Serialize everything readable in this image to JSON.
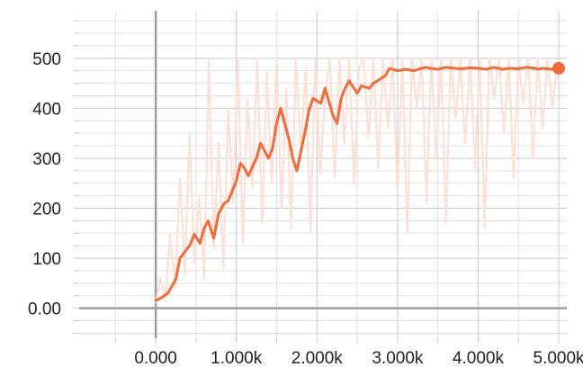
{
  "colors": {
    "smoothed": "#f26b3a",
    "raw": "#fde0d6",
    "grid_major": "#c8c8c8",
    "grid_minor": "#e2e2e2",
    "axis": "#9e9e9e",
    "tick_text": "#222222"
  },
  "chart_data": {
    "type": "line",
    "xlim": [
      -950,
      5100
    ],
    "ylim": [
      -60,
      595
    ],
    "grid": true,
    "x_ticks": [
      0,
      1000,
      2000,
      3000,
      4000,
      5000
    ],
    "x_tick_labels": [
      "0.000",
      "1.000k",
      "2.000k",
      "3.000k",
      "4.000k",
      "5.000k"
    ],
    "y_ticks": [
      0,
      100,
      200,
      300,
      400,
      500
    ],
    "y_tick_labels": [
      "0.00",
      "100",
      "200",
      "300",
      "400",
      "500"
    ],
    "series": [
      {
        "role": "smoothed",
        "x": [
          0,
          80,
          150,
          250,
          300,
          420,
          480,
          550,
          600,
          650,
          720,
          780,
          850,
          900,
          1000,
          1050,
          1100,
          1150,
          1250,
          1300,
          1400,
          1450,
          1500,
          1550,
          1650,
          1700,
          1750,
          1850,
          1900,
          1950,
          2050,
          2100,
          2200,
          2250,
          2300,
          2350,
          2400,
          2500,
          2550,
          2650,
          2700,
          2800,
          2850,
          2900,
          3000,
          3100,
          3200,
          3300,
          3350,
          3400,
          3500,
          3600,
          3700,
          3800,
          3900,
          4000,
          4100,
          4200,
          4300,
          4400,
          4500,
          4600,
          4700,
          4750,
          4800,
          4900,
          5000
        ],
        "y": [
          15,
          22,
          30,
          58,
          100,
          125,
          148,
          130,
          160,
          175,
          140,
          190,
          210,
          215,
          255,
          290,
          280,
          265,
          300,
          330,
          300,
          320,
          370,
          400,
          340,
          300,
          275,
          350,
          395,
          420,
          410,
          440,
          385,
          370,
          420,
          440,
          455,
          430,
          445,
          440,
          450,
          460,
          465,
          480,
          475,
          478,
          475,
          480,
          482,
          480,
          478,
          482,
          480,
          479,
          481,
          480,
          478,
          482,
          478,
          480,
          479,
          482,
          480,
          478,
          480,
          478,
          480
        ]
      },
      {
        "role": "raw",
        "x": [
          0,
          60,
          120,
          180,
          240,
          300,
          360,
          420,
          480,
          540,
          600,
          660,
          720,
          780,
          840,
          900,
          960,
          1020,
          1080,
          1140,
          1200,
          1260,
          1320,
          1380,
          1440,
          1500,
          1560,
          1620,
          1680,
          1740,
          1800,
          1860,
          1920,
          1980,
          2040,
          2100,
          2160,
          2220,
          2280,
          2340,
          2400,
          2460,
          2520,
          2580,
          2640,
          2700,
          2760,
          2820,
          2880,
          2940,
          3000,
          3060,
          3120,
          3180,
          3240,
          3300,
          3360,
          3420,
          3480,
          3540,
          3600,
          3660,
          3720,
          3780,
          3840,
          3900,
          3960,
          4020,
          4080,
          4140,
          4200,
          4260,
          4320,
          4380,
          4440,
          4500,
          4560,
          4620,
          4680,
          4740,
          4800,
          4860,
          4920,
          4980
        ],
        "y": [
          10,
          60,
          20,
          150,
          40,
          260,
          70,
          350,
          90,
          220,
          60,
          500,
          120,
          330,
          80,
          400,
          210,
          500,
          130,
          420,
          240,
          500,
          170,
          470,
          250,
          500,
          200,
          440,
          160,
          500,
          310,
          480,
          150,
          500,
          270,
          420,
          500,
          260,
          500,
          330,
          500,
          250,
          480,
          500,
          340,
          500,
          280,
          500,
          360,
          500,
          230,
          500,
          150,
          500,
          400,
          500,
          210,
          500,
          300,
          500,
          170,
          500,
          380,
          500,
          330,
          500,
          280,
          500,
          160,
          500,
          420,
          500,
          350,
          500,
          260,
          500,
          410,
          500,
          300,
          500,
          360,
          500,
          400,
          480
        ]
      }
    ]
  }
}
